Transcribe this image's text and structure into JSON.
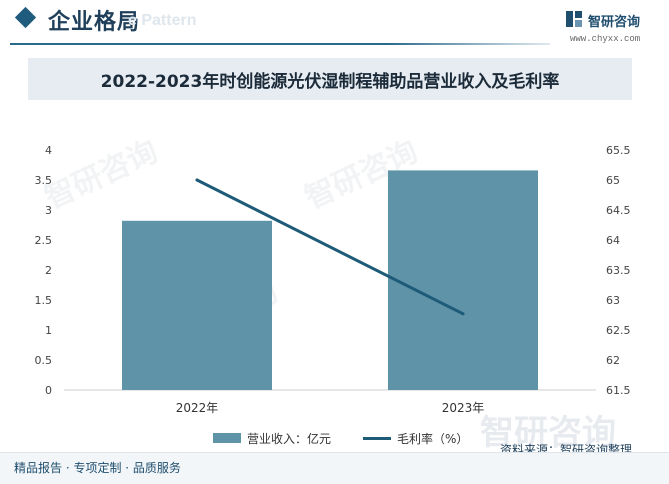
{
  "header": {
    "section_title": "企业格局",
    "ghost_text": "e Pattern"
  },
  "brand": {
    "name": "智研咨询",
    "url": "www.chyxx.com",
    "color": "#1f4e6e"
  },
  "chart_data": {
    "type": "bar",
    "title": "2022-2023年时创能源光伏湿制程辅助品营业收入及毛利率",
    "categories": [
      "2022年",
      "2023年"
    ],
    "series": [
      {
        "name": "营业收入：亿元",
        "type": "bar",
        "axis": "left",
        "values": [
          2.82,
          3.66
        ],
        "color": "#5e93a8"
      },
      {
        "name": "毛利率（%）",
        "type": "line",
        "axis": "right",
        "values": [
          65.0,
          62.77
        ],
        "color": "#1e5b78"
      }
    ],
    "y_left": {
      "min": 0,
      "max": 4,
      "ticks": [
        "0",
        "0.5",
        "1",
        "1.5",
        "2",
        "2.5",
        "3",
        "3.5",
        "4"
      ]
    },
    "y_right": {
      "min": 61.5,
      "max": 65.5,
      "ticks": [
        "61.5",
        "62",
        "62.5",
        "63",
        "63.5",
        "64",
        "64.5",
        "65",
        "65.5"
      ]
    },
    "grid": false,
    "legend_position": "bottom"
  },
  "source": "资料来源：智研咨询整理",
  "footer": "精品报告 · 专项定制 · 品质服务",
  "watermark": "智研咨询"
}
